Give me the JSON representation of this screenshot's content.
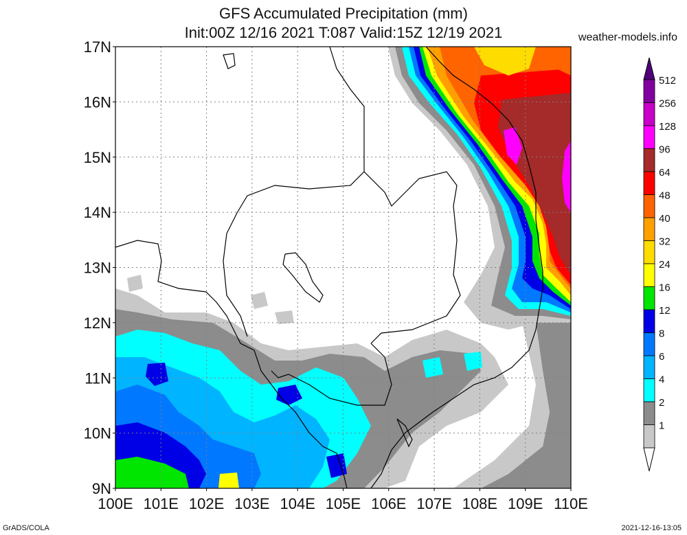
{
  "title": "GFS Accumulated Precipitation (mm)",
  "subtitle": "Init:00Z 12/16 2021 T:087 Valid:15Z 12/19 2021",
  "site": "weather-models.info",
  "footer_left": "GrADS/COLA",
  "footer_right": "2021-12-16-13:05",
  "map": {
    "lon_range": [
      100,
      110
    ],
    "lat_range": [
      9,
      17
    ],
    "lon_labels": [
      "100E",
      "101E",
      "102E",
      "103E",
      "104E",
      "105E",
      "106E",
      "107E",
      "108E",
      "109E",
      "110E"
    ],
    "lat_labels": [
      "9N",
      "10N",
      "11N",
      "12N",
      "13N",
      "14N",
      "15N",
      "16N",
      "17N"
    ],
    "grid": true
  },
  "legend": {
    "levels": [
      {
        "label": "1",
        "color": "#c8c8c8"
      },
      {
        "label": "2",
        "color": "#8c8c8c"
      },
      {
        "label": "4",
        "color": "#00ffff"
      },
      {
        "label": "6",
        "color": "#00b4ff"
      },
      {
        "label": "8",
        "color": "#0078ff"
      },
      {
        "label": "12",
        "color": "#0000e6"
      },
      {
        "label": "16",
        "color": "#00e600"
      },
      {
        "label": "24",
        "color": "#ffff00"
      },
      {
        "label": "32",
        "color": "#ffdc00"
      },
      {
        "label": "40",
        "color": "#ffa000"
      },
      {
        "label": "48",
        "color": "#ff6400"
      },
      {
        "label": "64",
        "color": "#ff0000"
      },
      {
        "label": "96",
        "color": "#a52a2a"
      },
      {
        "label": "128",
        "color": "#ff00ff"
      },
      {
        "label": "256",
        "color": "#c800c8"
      },
      {
        "label": "512",
        "color": "#8200a0"
      }
    ],
    "top_arrow_color": "#500078"
  }
}
